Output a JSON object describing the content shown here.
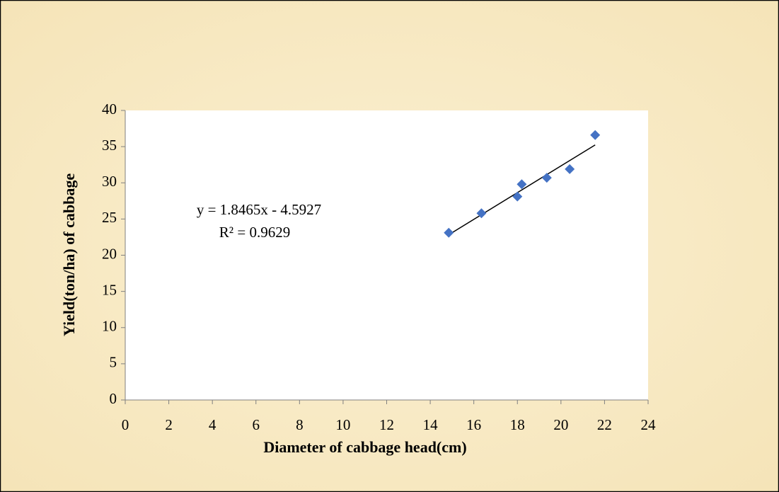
{
  "chart_data": {
    "type": "scatter",
    "x_label": "Diameter of cabbage head(cm)",
    "y_label": "Yield(ton/ha) of cabbage",
    "annotations": [
      "y = 1.8465x - 4.5927",
      "R² = 0.9629"
    ],
    "trendline": {
      "slope": 1.8465,
      "intercept": -4.5927
    },
    "series": [
      {
        "name": "Yield",
        "color": "#4472c4",
        "x": [
          14.85,
          16.35,
          18.0,
          18.2,
          19.35,
          20.4,
          21.57
        ],
        "values": [
          23.1,
          25.8,
          28.1,
          29.8,
          30.7,
          31.9,
          36.6
        ]
      }
    ],
    "xlim": [
      0,
      24
    ],
    "xticks": [
      0,
      2,
      4,
      6,
      8,
      10,
      12,
      14,
      16,
      18,
      20,
      22,
      24
    ],
    "ylim": [
      0,
      40
    ],
    "yticks": [
      0,
      5,
      10,
      15,
      20,
      25,
      30,
      35,
      40
    ]
  }
}
